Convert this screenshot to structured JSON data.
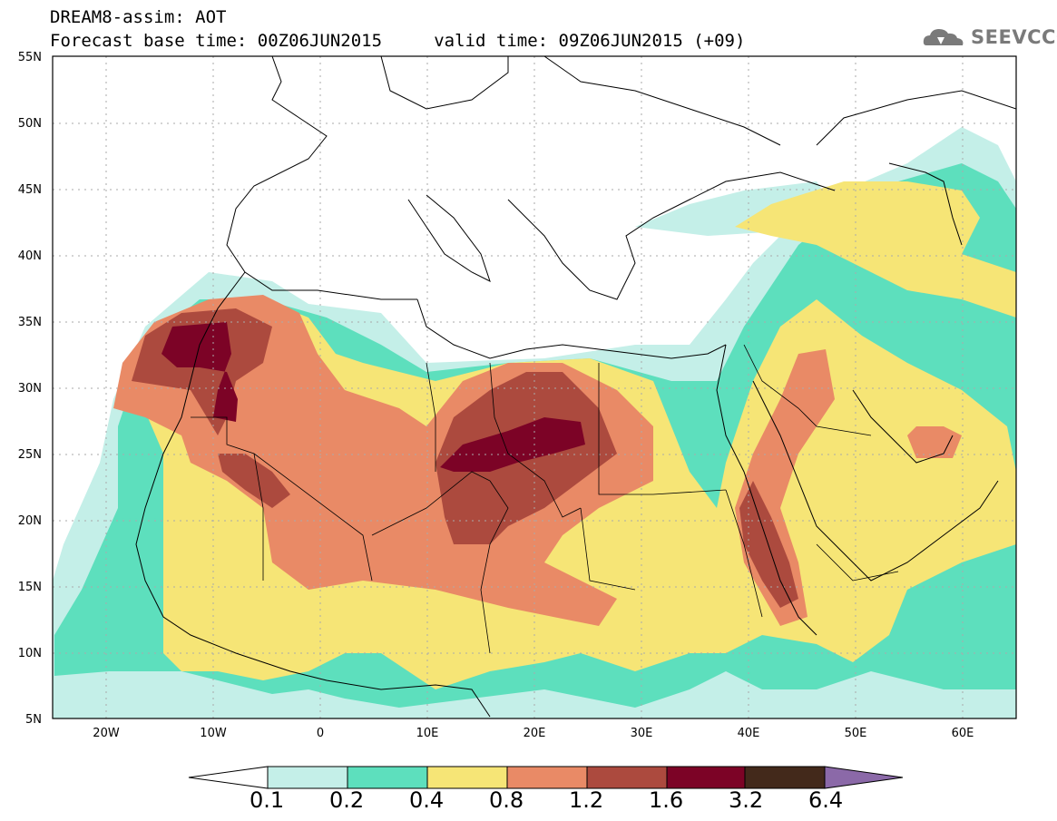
{
  "header": {
    "line1": "DREAM8-assim: AOT",
    "line2": "Forecast base time: 00Z06JUN2015     valid time: 09Z06JUN2015 (+09)",
    "logo_text": "SEEVCCC"
  },
  "map": {
    "lon_range": [
      -25,
      65
    ],
    "lat_range": [
      5,
      55
    ],
    "lat_labels": [
      "55N",
      "50N",
      "45N",
      "40N",
      "35N",
      "30N",
      "25N",
      "20N",
      "15N",
      "10N",
      "5N"
    ],
    "lon_labels": [
      "20W",
      "10W",
      "0",
      "10E",
      "20E",
      "30E",
      "40E",
      "50E",
      "60E"
    ],
    "field": "AOT"
  },
  "colorbar": {
    "levels": [
      "0.1",
      "0.2",
      "0.4",
      "0.8",
      "1.2",
      "1.6",
      "3.2",
      "6.4"
    ],
    "colors": [
      "#ffffff",
      "#c4efe8",
      "#5ddfbd",
      "#f6e576",
      "#e98a66",
      "#ac4a3e",
      "#7c0326",
      "#43291b",
      "#8b69a8"
    ]
  }
}
